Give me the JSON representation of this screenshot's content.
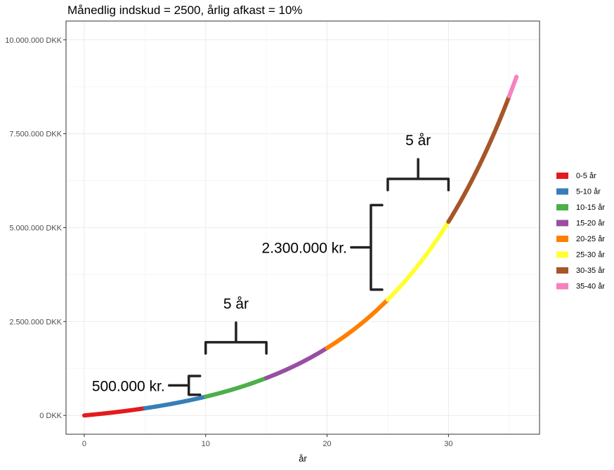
{
  "chart_data": {
    "type": "line",
    "title": "Månedlig indskud = 2500, årlig afkast = 10%",
    "xlabel": "år",
    "ylabel": "",
    "xlim": [
      -1.5,
      37.5
    ],
    "ylim": [
      -500000,
      10500000
    ],
    "x_ticks": [
      0,
      10,
      20,
      30
    ],
    "y_ticks": [
      0,
      2500000,
      5000000,
      7500000,
      10000000
    ],
    "y_tick_labels": [
      "0 DKK",
      "2.500.000 DKK",
      "5.000.000 DKK",
      "7.500.000 DKK",
      "10.000.000 DKK"
    ],
    "grid": true,
    "legend_position": "right",
    "monthly_deposit": 2500,
    "annual_return": 0.1,
    "series": [
      {
        "name": "0-5 år",
        "x_range": [
          0,
          5
        ],
        "color": "#E41A1C"
      },
      {
        "name": "5-10 år",
        "x_range": [
          5,
          10
        ],
        "color": "#377EB8"
      },
      {
        "name": "10-15 år",
        "x_range": [
          10,
          15
        ],
        "color": "#4DAF4A"
      },
      {
        "name": "15-20 år",
        "x_range": [
          15,
          20
        ],
        "color": "#984EA3"
      },
      {
        "name": "20-25 år",
        "x_range": [
          20,
          25
        ],
        "color": "#FF7F00"
      },
      {
        "name": "25-30 år",
        "x_range": [
          25,
          30
        ],
        "color": "#FFFF33"
      },
      {
        "name": "30-35 år",
        "x_range": [
          30,
          35
        ],
        "color": "#A65628"
      },
      {
        "name": "35-40 år",
        "x_range": [
          35,
          35.6
        ],
        "color": "#F781BF"
      }
    ],
    "annotations": [
      {
        "text": "500.000 kr.",
        "span": "y",
        "x": 10,
        "y_range": [
          550000,
          1050000
        ]
      },
      {
        "text": "5 år",
        "span": "x",
        "y": 1650000,
        "x_range": [
          10,
          15
        ]
      },
      {
        "text": "2.300.000 kr.",
        "span": "y",
        "x": 25,
        "y_range": [
          3350000,
          5600000
        ]
      },
      {
        "text": "5 år",
        "span": "x",
        "y": 6000000,
        "x_range": [
          25,
          30
        ]
      }
    ]
  }
}
